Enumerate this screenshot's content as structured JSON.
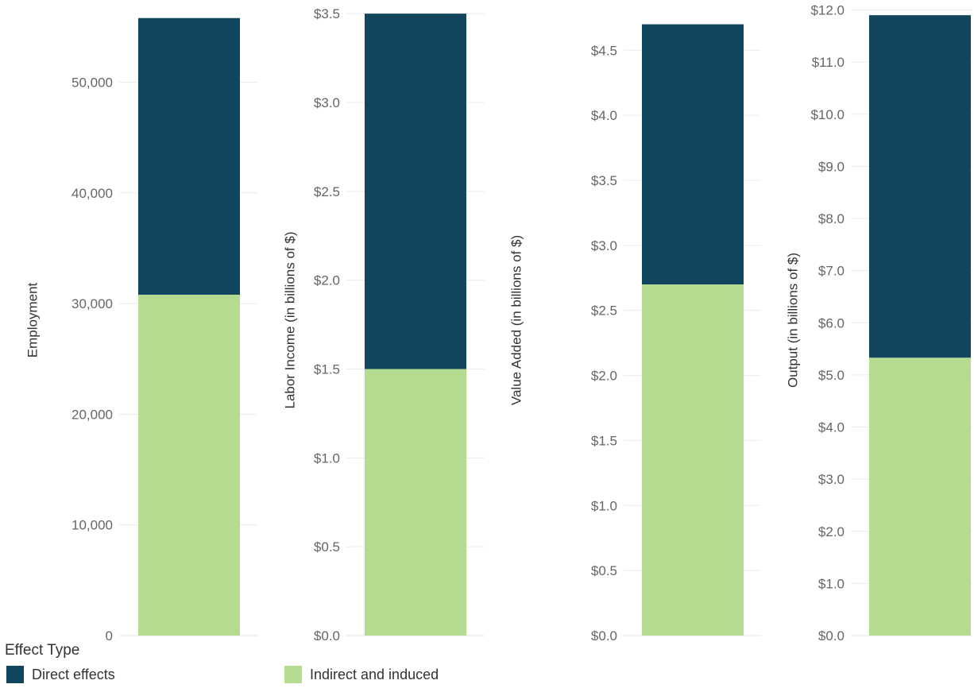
{
  "chart_data": [
    {
      "type": "bar",
      "stacked": true,
      "ylabel": "Employment",
      "ylim": [
        0,
        57000
      ],
      "ticks": [
        "0",
        "10,000",
        "20,000",
        "30,000",
        "40,000",
        "50,000"
      ],
      "tick_values": [
        0,
        10000,
        20000,
        30000,
        40000,
        50000
      ],
      "series": [
        {
          "name": "Indirect and induced",
          "values": [
            30800
          ]
        },
        {
          "name": "Direct effects",
          "values": [
            25000
          ]
        }
      ]
    },
    {
      "type": "bar",
      "stacked": true,
      "ylabel": "Labor Income (in billions of $)",
      "ylim": [
        0,
        3.55
      ],
      "ticks": [
        "$0.0",
        "$0.5",
        "$1.0",
        "$1.5",
        "$2.0",
        "$2.5",
        "$3.0",
        "$3.5"
      ],
      "tick_values": [
        0,
        0.5,
        1.0,
        1.5,
        2.0,
        2.5,
        3.0,
        3.5
      ],
      "series": [
        {
          "name": "Indirect and induced",
          "values": [
            1.5
          ]
        },
        {
          "name": "Direct effects",
          "values": [
            2.0
          ]
        }
      ]
    },
    {
      "type": "bar",
      "stacked": true,
      "ylabel": "Value Added (in billions of $)",
      "ylim": [
        0,
        4.85
      ],
      "ticks": [
        "$0.0",
        "$0.5",
        "$1.0",
        "$1.5",
        "$2.0",
        "$2.5",
        "$3.0",
        "$3.5",
        "$4.0",
        "$4.5"
      ],
      "tick_values": [
        0,
        0.5,
        1.0,
        1.5,
        2.0,
        2.5,
        3.0,
        3.5,
        4.0,
        4.5
      ],
      "series": [
        {
          "name": "Indirect and induced",
          "values": [
            2.7
          ]
        },
        {
          "name": "Direct effects",
          "values": [
            2.0
          ]
        }
      ]
    },
    {
      "type": "bar",
      "stacked": true,
      "ylabel": "Output (in billions of $)",
      "ylim": [
        0,
        12.1
      ],
      "ticks": [
        "$0.0",
        "$1.0",
        "$2.0",
        "$3.0",
        "$4.0",
        "$5.0",
        "$6.0",
        "$7.0",
        "$8.0",
        "$9.0",
        "$10.0",
        "$11.0",
        "$12.0"
      ],
      "tick_values": [
        0,
        1,
        2,
        3,
        4,
        5,
        6,
        7,
        8,
        9,
        10,
        11,
        12
      ],
      "series": [
        {
          "name": "Indirect and induced",
          "values": [
            5.33
          ]
        },
        {
          "name": "Direct effects",
          "values": [
            6.57
          ]
        }
      ]
    }
  ],
  "legend": {
    "title": "Effect Type",
    "items": [
      {
        "label": "Direct effects",
        "color": "#12465e"
      },
      {
        "label": "Indirect and induced",
        "color": "#b5db91"
      }
    ]
  },
  "colors": {
    "direct": "#12465e",
    "indirect": "#b5db91",
    "text": "#666666",
    "gridline": "#ececec"
  }
}
